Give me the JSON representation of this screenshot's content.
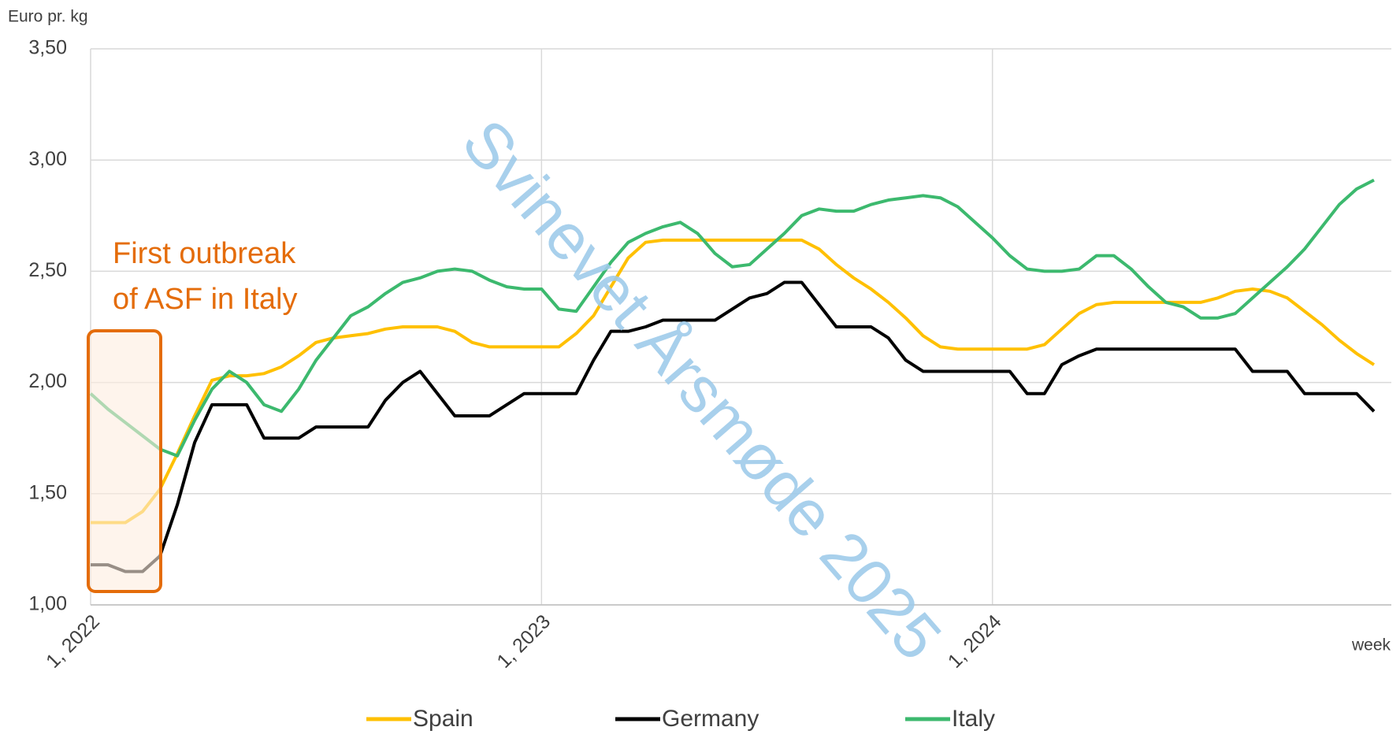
{
  "chart_data": {
    "type": "line",
    "y_label": "Euro pr. kg",
    "x_label": "week",
    "annotation": "First outbreak of ASF in Italy",
    "watermark": "Svinevet Årsmøde 2025",
    "x": [
      0,
      2,
      4,
      6,
      8,
      10,
      12,
      14,
      16,
      18,
      20,
      22,
      24,
      26,
      28,
      30,
      32,
      34,
      36,
      38,
      40,
      42,
      44,
      46,
      48,
      50,
      52,
      54,
      56,
      58,
      60,
      62,
      64,
      66,
      68,
      70,
      72,
      74,
      76,
      78,
      80,
      82,
      84,
      86,
      88,
      90,
      92,
      94,
      96,
      98,
      100,
      102,
      104,
      106,
      108,
      110,
      112,
      114,
      116,
      118,
      120,
      122,
      124,
      126,
      128,
      130,
      132,
      134,
      136,
      138,
      140,
      142,
      144,
      146,
      148
    ],
    "series": [
      {
        "name": "Spain",
        "color": "#ffc000",
        "values": [
          1.37,
          1.37,
          1.37,
          1.42,
          1.52,
          1.68,
          1.85,
          2.01,
          2.03,
          2.03,
          2.04,
          2.07,
          2.12,
          2.18,
          2.2,
          2.21,
          2.22,
          2.24,
          2.25,
          2.25,
          2.25,
          2.23,
          2.18,
          2.16,
          2.16,
          2.16,
          2.16,
          2.16,
          2.22,
          2.3,
          2.43,
          2.56,
          2.63,
          2.64,
          2.64,
          2.64,
          2.64,
          2.64,
          2.64,
          2.64,
          2.64,
          2.64,
          2.6,
          2.53,
          2.47,
          2.42,
          2.36,
          2.29,
          2.21,
          2.16,
          2.15,
          2.15,
          2.15,
          2.15,
          2.15,
          2.17,
          2.24,
          2.31,
          2.35,
          2.36,
          2.36,
          2.36,
          2.36,
          2.36,
          2.36,
          2.38,
          2.41,
          2.42,
          2.41,
          2.38,
          2.32,
          2.26,
          2.19,
          2.13,
          2.08
        ]
      },
      {
        "name": "Germany",
        "color": "#000000",
        "values": [
          1.18,
          1.18,
          1.15,
          1.15,
          1.22,
          1.45,
          1.73,
          1.9,
          1.9,
          1.9,
          1.75,
          1.75,
          1.75,
          1.8,
          1.8,
          1.8,
          1.8,
          1.92,
          2.0,
          2.05,
          1.95,
          1.85,
          1.85,
          1.85,
          1.9,
          1.95,
          1.95,
          1.95,
          1.95,
          2.1,
          2.23,
          2.23,
          2.25,
          2.28,
          2.28,
          2.28,
          2.28,
          2.33,
          2.38,
          2.4,
          2.45,
          2.45,
          2.35,
          2.25,
          2.25,
          2.25,
          2.2,
          2.1,
          2.05,
          2.05,
          2.05,
          2.05,
          2.05,
          2.05,
          1.95,
          1.95,
          2.08,
          2.12,
          2.15,
          2.15,
          2.15,
          2.15,
          2.15,
          2.15,
          2.15,
          2.15,
          2.15,
          2.05,
          2.05,
          2.05,
          1.95,
          1.95,
          1.95,
          1.95,
          1.87
        ]
      },
      {
        "name": "Italy",
        "color": "#3cb96e",
        "values": [
          1.95,
          1.88,
          1.82,
          1.76,
          1.7,
          1.67,
          1.83,
          1.97,
          2.05,
          2.0,
          1.9,
          1.87,
          1.97,
          2.1,
          2.2,
          2.3,
          2.34,
          2.4,
          2.45,
          2.47,
          2.5,
          2.51,
          2.5,
          2.46,
          2.43,
          2.42,
          2.42,
          2.33,
          2.32,
          2.43,
          2.54,
          2.63,
          2.67,
          2.7,
          2.72,
          2.67,
          2.58,
          2.52,
          2.53,
          2.6,
          2.67,
          2.75,
          2.78,
          2.77,
          2.77,
          2.8,
          2.82,
          2.83,
          2.84,
          2.83,
          2.79,
          2.72,
          2.65,
          2.57,
          2.51,
          2.5,
          2.5,
          2.51,
          2.57,
          2.57,
          2.51,
          2.43,
          2.36,
          2.34,
          2.29,
          2.29,
          2.31,
          2.38,
          2.45,
          2.52,
          2.6,
          2.7,
          2.8,
          2.87,
          2.91
        ]
      }
    ],
    "xlim": [
      0,
      150
    ],
    "xticks": [
      {
        "value": 0,
        "label": "1, 2022"
      },
      {
        "value": 52,
        "label": "1, 2023"
      },
      {
        "value": 104,
        "label": "1, 2024"
      }
    ],
    "ylim": [
      1,
      3.5
    ],
    "yticks": [
      {
        "value": 1,
        "label": "1,00"
      },
      {
        "value": 1.5,
        "label": "1,50"
      },
      {
        "value": 2,
        "label": "2,00"
      },
      {
        "value": 2.5,
        "label": "2,50"
      },
      {
        "value": 3,
        "label": "3,00"
      },
      {
        "value": 3.5,
        "label": "3,50"
      }
    ],
    "grid": true,
    "legend": "bottom"
  }
}
